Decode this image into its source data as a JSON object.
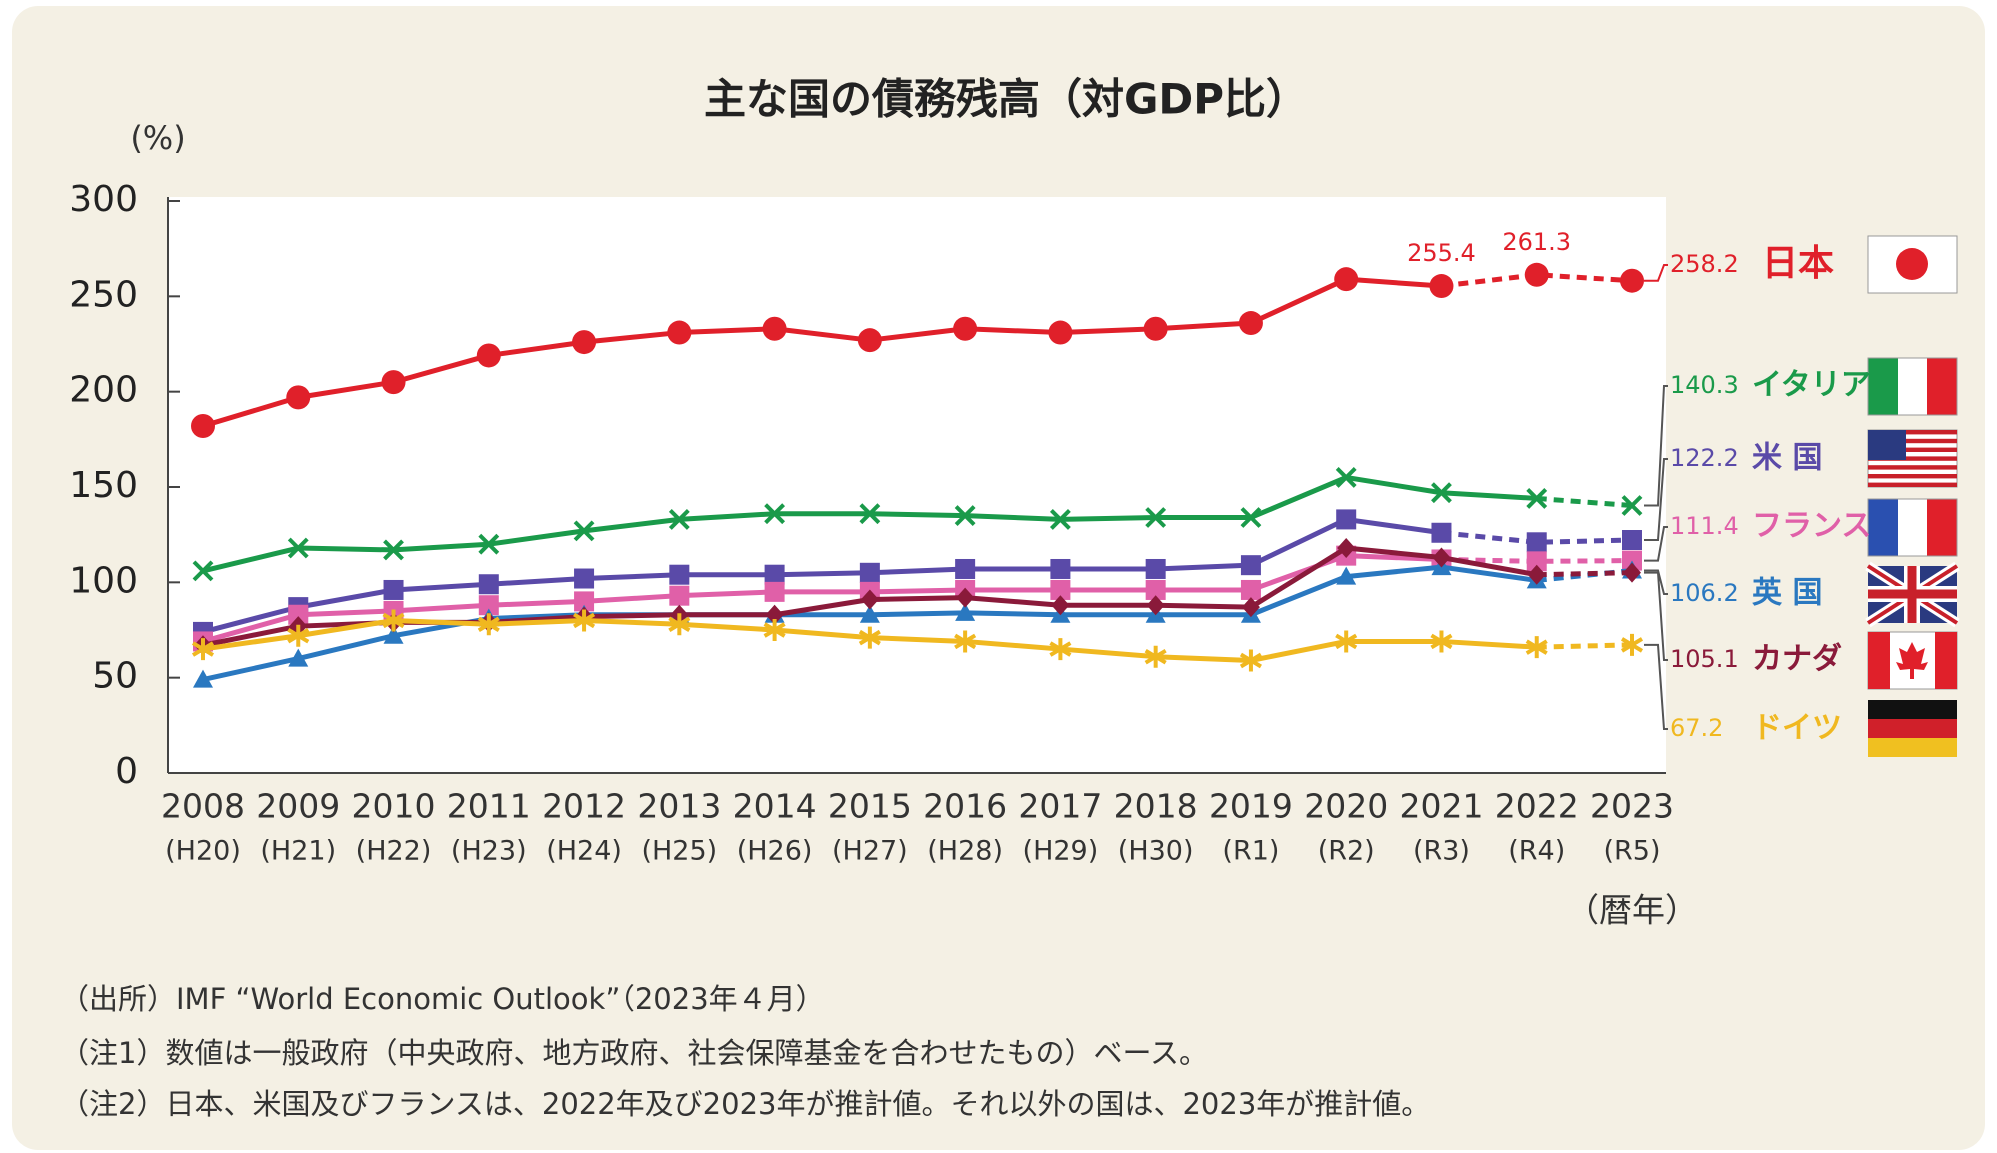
{
  "chart_data": {
    "type": "line",
    "title": "主な国の債務残高（対GDP比）",
    "y_label": "(%)",
    "x_label": "（暦年）",
    "categories": [
      "2008",
      "2009",
      "2010",
      "2011",
      "2012",
      "2013",
      "2014",
      "2015",
      "2016",
      "2017",
      "2018",
      "2019",
      "2020",
      "2021",
      "2022",
      "2023"
    ],
    "sub_categories": [
      "(H20)",
      "(H21)",
      "(H22)",
      "(H23)",
      "(H24)",
      "(H25)",
      "(H26)",
      "(H27)",
      "(H28)",
      "(H29)",
      "(H30)",
      "(R1)",
      "(R2)",
      "(R3)",
      "(R4)",
      "(R5)"
    ],
    "ylim": [
      0,
      300
    ],
    "yticks": [
      0,
      50,
      100,
      150,
      200,
      250,
      300
    ],
    "series": [
      {
        "name": "日本",
        "color": "#e0202a",
        "marker": "circle",
        "dashed_from_index": 13,
        "labeled_points": [
          13,
          14
        ],
        "values": [
          182,
          197,
          205,
          219,
          226,
          231,
          233,
          227,
          233,
          231,
          233,
          236,
          259,
          255.4,
          261.3,
          258.2
        ]
      },
      {
        "name": "イタリア",
        "color": "#1a9a4a",
        "marker": "cross",
        "dashed_from_index": 14,
        "values": [
          106,
          118,
          117,
          120,
          127,
          133,
          136,
          136,
          135,
          133,
          134,
          134,
          155,
          147,
          144,
          140.3
        ]
      },
      {
        "name": "米 国",
        "color": "#5a4aa8",
        "marker": "square",
        "dashed_from_index": 13,
        "values": [
          74,
          87,
          96,
          99,
          102,
          104,
          104,
          105,
          107,
          107,
          107,
          109,
          133,
          126,
          121,
          122.2
        ]
      },
      {
        "name": "フランス",
        "color": "#e060a8",
        "marker": "square",
        "dashed_from_index": 13,
        "values": [
          69,
          83,
          85,
          88,
          90,
          93,
          95,
          95,
          96,
          96,
          96,
          96,
          114,
          112,
          111,
          111.4
        ]
      },
      {
        "name": "英 国",
        "color": "#2a78c0",
        "marker": "triangle",
        "dashed_from_index": 14,
        "values": [
          49,
          60,
          72,
          81,
          83,
          83,
          83,
          83,
          84,
          83,
          83,
          83,
          103,
          108,
          101,
          106.2
        ]
      },
      {
        "name": "カナダ",
        "color": "#8a1a3a",
        "marker": "diamond",
        "dashed_from_index": 14,
        "values": [
          67,
          77,
          79,
          79,
          82,
          83,
          83,
          91,
          92,
          88,
          88,
          87,
          118,
          113,
          104,
          105.1
        ]
      },
      {
        "name": "ドイツ",
        "color": "#f0b820",
        "marker": "asterisk",
        "dashed_from_index": 14,
        "values": [
          65,
          72,
          80,
          78,
          80,
          78,
          75,
          71,
          69,
          65,
          61,
          59,
          69,
          69,
          66,
          67.2
        ]
      }
    ],
    "notes": [
      "（出所）IMF “World Economic Outlook”（2023年４月）",
      "（注1）数値は一般政府（中央政府、地方政府、社会保障基金を合わせたもの）ベース。",
      "（注2）日本、米国及びフランスは、2022年及び2023年が推計値。それ以外の国は、2023年が推計値。"
    ]
  }
}
